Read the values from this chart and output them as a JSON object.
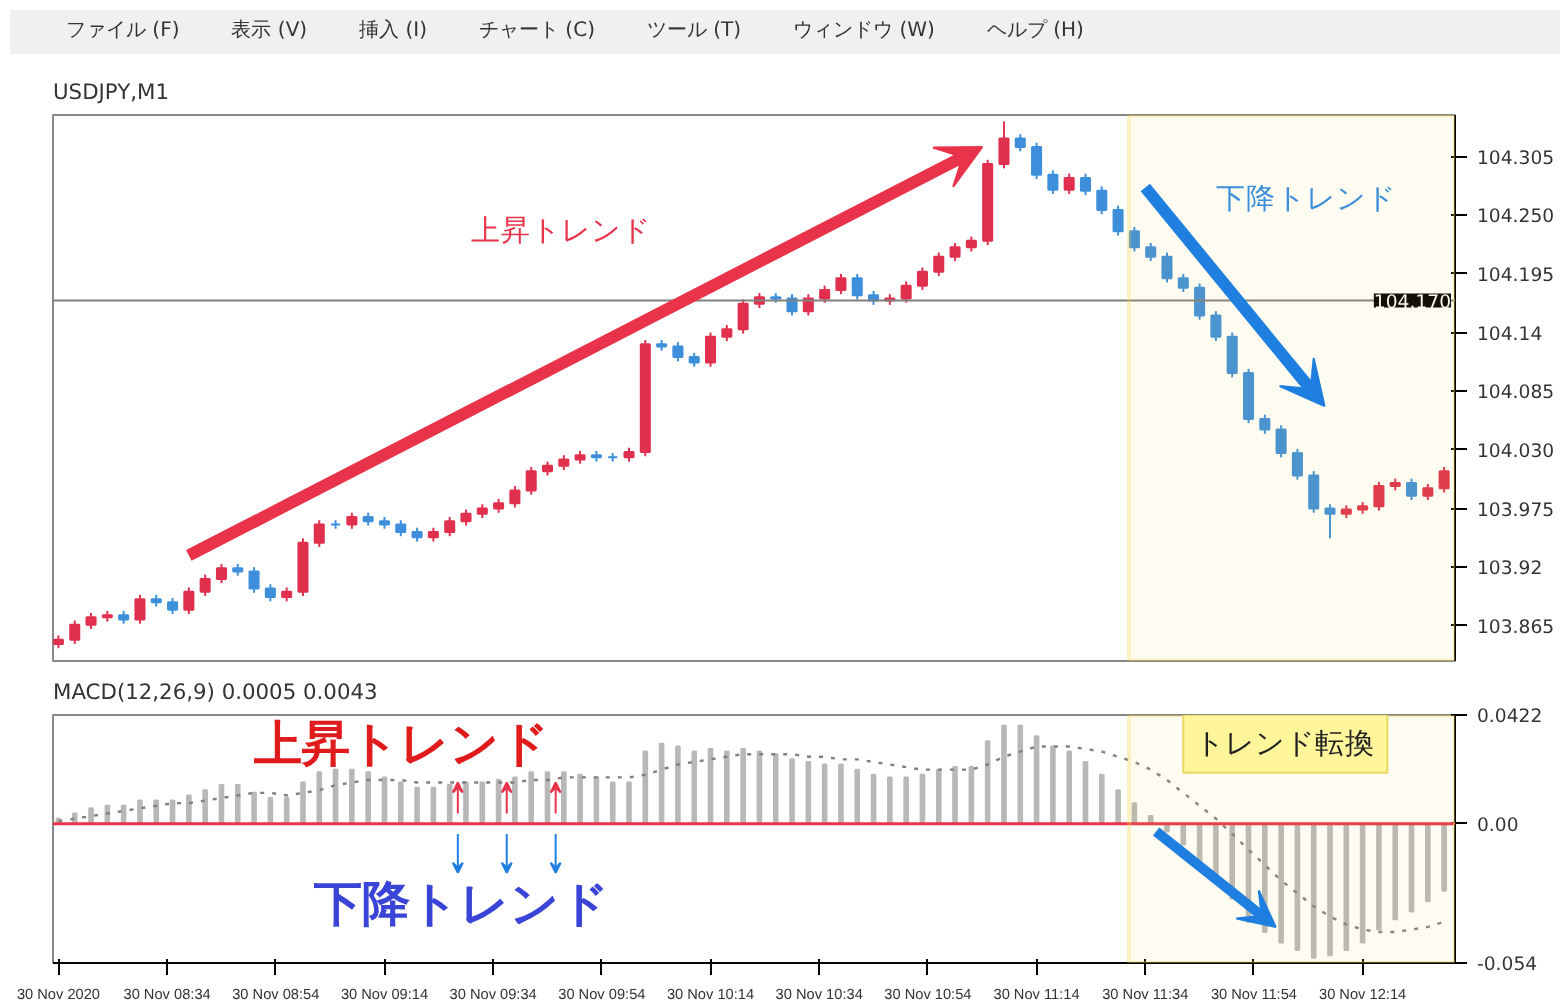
{
  "chart_data": [
    {
      "type": "candlestick",
      "title": "USDJPY,M1",
      "tick_labels": "y",
      "annotations": [
        "ファイル (F)",
        "表示 (V)",
        "挿入 (I)",
        "チャート (C)",
        "ツール (T)",
        "ウィンドウ (W)",
        "ヘルプ (H)",
        "上昇トレンド",
        "下降トレンド"
      ],
      "x": [
        "2020-11-30T08:14",
        "2020-11-30T08:17",
        "2020-11-30T08:20",
        "2020-11-30T08:23",
        "2020-11-30T08:26",
        "2020-11-30T08:29",
        "2020-11-30T08:32",
        "2020-11-30T08:35",
        "2020-11-30T08:38",
        "2020-11-30T08:41",
        "2020-11-30T08:44",
        "2020-11-30T08:47",
        "2020-11-30T08:50",
        "2020-11-30T08:53",
        "2020-11-30T08:56",
        "2020-11-30T08:59",
        "2020-11-30T09:02",
        "2020-11-30T09:05",
        "2020-11-30T09:08",
        "2020-11-30T09:11",
        "2020-11-30T09:14",
        "2020-11-30T09:17",
        "2020-11-30T09:20",
        "2020-11-30T09:23",
        "2020-11-30T09:26",
        "2020-11-30T09:29",
        "2020-11-30T09:32",
        "2020-11-30T09:35",
        "2020-11-30T09:38",
        "2020-11-30T09:41",
        "2020-11-30T09:44",
        "2020-11-30T09:47",
        "2020-11-30T09:50",
        "2020-11-30T09:53",
        "2020-11-30T09:56",
        "2020-11-30T09:59",
        "2020-11-30T10:02",
        "2020-11-30T10:05",
        "2020-11-30T10:08",
        "2020-11-30T10:11",
        "2020-11-30T10:14",
        "2020-11-30T10:17",
        "2020-11-30T10:20",
        "2020-11-30T10:23",
        "2020-11-30T10:26",
        "2020-11-30T10:29",
        "2020-11-30T10:32",
        "2020-11-30T10:35",
        "2020-11-30T10:38",
        "2020-11-30T10:41",
        "2020-11-30T10:44",
        "2020-11-30T10:47",
        "2020-11-30T10:50",
        "2020-11-30T10:53",
        "2020-11-30T10:56",
        "2020-11-30T10:59",
        "2020-11-30T11:02",
        "2020-11-30T11:05",
        "2020-11-30T11:08",
        "2020-11-30T11:11",
        "2020-11-30T11:14",
        "2020-11-30T11:17",
        "2020-11-30T11:20",
        "2020-11-30T11:23",
        "2020-11-30T11:26",
        "2020-11-30T11:29",
        "2020-11-30T11:32",
        "2020-11-30T11:35",
        "2020-11-30T11:38",
        "2020-11-30T11:41",
        "2020-11-30T11:44",
        "2020-11-30T11:47",
        "2020-11-30T11:50",
        "2020-11-30T11:53",
        "2020-11-30T11:56",
        "2020-11-30T11:59",
        "2020-11-30T12:02",
        "2020-11-30T12:05",
        "2020-11-30T12:08",
        "2020-11-30T12:11",
        "2020-11-30T12:14",
        "2020-11-30T12:17",
        "2020-11-30T12:20",
        "2020-11-30T12:23",
        "2020-11-30T12:26",
        "2020-11-30T12:29"
      ],
      "ohlc": [
        [
          103.848,
          103.856,
          103.844,
          103.852
        ],
        [
          103.852,
          103.87,
          103.848,
          103.866
        ],
        [
          103.866,
          103.877,
          103.862,
          103.873
        ],
        [
          103.873,
          103.879,
          103.869,
          103.875
        ],
        [
          103.875,
          103.879,
          103.867,
          103.871
        ],
        [
          103.871,
          103.894,
          103.867,
          103.89
        ],
        [
          103.89,
          103.894,
          103.883,
          103.887
        ],
        [
          103.887,
          103.891,
          103.876,
          103.88
        ],
        [
          103.88,
          103.901,
          103.876,
          103.897
        ],
        [
          103.897,
          103.913,
          103.893,
          103.909
        ],
        [
          103.909,
          103.923,
          103.905,
          103.919
        ],
        [
          103.919,
          103.923,
          103.912,
          103.916
        ],
        [
          103.916,
          103.92,
          103.896,
          103.9
        ],
        [
          103.9,
          103.904,
          103.888,
          103.892
        ],
        [
          103.892,
          103.901,
          103.888,
          103.897
        ],
        [
          103.897,
          103.947,
          103.893,
          103.943
        ],
        [
          103.943,
          103.964,
          103.939,
          103.96
        ],
        [
          103.96,
          103.964,
          103.956,
          103.96
        ],
        [
          103.96,
          103.971,
          103.956,
          103.967
        ],
        [
          103.967,
          103.971,
          103.959,
          103.963
        ],
        [
          103.963,
          103.967,
          103.956,
          103.96
        ],
        [
          103.96,
          103.964,
          103.949,
          103.953
        ],
        [
          103.953,
          103.957,
          103.944,
          103.948
        ],
        [
          103.948,
          103.957,
          103.944,
          103.953
        ],
        [
          103.953,
          103.967,
          103.949,
          103.963
        ],
        [
          103.963,
          103.974,
          103.959,
          103.97
        ],
        [
          103.97,
          103.979,
          103.966,
          103.975
        ],
        [
          103.975,
          103.984,
          103.971,
          103.98
        ],
        [
          103.98,
          103.996,
          103.976,
          103.992
        ],
        [
          103.992,
          104.014,
          103.988,
          104.01
        ],
        [
          104.01,
          104.019,
          104.006,
          104.015
        ],
        [
          104.015,
          104.025,
          104.011,
          104.021
        ],
        [
          104.021,
          104.029,
          104.017,
          104.025
        ],
        [
          104.025,
          104.029,
          104.019,
          104.023
        ],
        [
          104.023,
          104.027,
          104.019,
          104.023
        ],
        [
          104.023,
          104.032,
          104.019,
          104.028
        ],
        [
          104.028,
          104.133,
          104.024,
          104.129
        ],
        [
          104.129,
          104.133,
          104.123,
          104.127
        ],
        [
          104.127,
          104.131,
          104.113,
          104.117
        ],
        [
          104.117,
          104.121,
          104.108,
          104.112
        ],
        [
          104.112,
          104.14,
          104.108,
          104.136
        ],
        [
          104.136,
          104.147,
          104.132,
          104.143
        ],
        [
          104.143,
          104.171,
          104.139,
          104.167
        ],
        [
          104.167,
          104.177,
          104.163,
          104.173
        ],
        [
          104.173,
          104.177,
          104.168,
          104.172
        ],
        [
          104.172,
          104.176,
          104.156,
          104.16
        ],
        [
          104.16,
          104.176,
          104.156,
          104.172
        ],
        [
          104.172,
          104.184,
          104.168,
          104.18
        ],
        [
          104.18,
          104.195,
          104.176,
          104.191
        ],
        [
          104.191,
          104.195,
          104.171,
          104.175
        ],
        [
          104.175,
          104.179,
          104.166,
          104.17
        ],
        [
          104.17,
          104.176,
          104.166,
          104.172
        ],
        [
          104.172,
          104.188,
          104.168,
          104.184
        ],
        [
          104.184,
          104.201,
          104.18,
          104.197
        ],
        [
          104.197,
          104.215,
          104.193,
          104.211
        ],
        [
          104.211,
          104.224,
          104.207,
          104.22
        ],
        [
          104.22,
          104.23,
          104.216,
          104.226
        ],
        [
          104.226,
          104.302,
          104.222,
          104.298
        ],
        [
          104.298,
          104.338,
          104.294,
          104.322
        ],
        [
          104.322,
          104.326,
          104.31,
          104.314
        ],
        [
          104.314,
          104.318,
          104.284,
          104.288
        ],
        [
          104.288,
          104.292,
          104.27,
          104.274
        ],
        [
          104.274,
          104.289,
          104.27,
          104.285
        ],
        [
          104.285,
          104.289,
          104.269,
          104.273
        ],
        [
          104.273,
          104.277,
          104.251,
          104.255
        ],
        [
          104.255,
          104.259,
          104.231,
          104.235
        ],
        [
          104.235,
          104.239,
          104.216,
          104.22
        ],
        [
          104.22,
          104.224,
          104.207,
          104.211
        ],
        [
          104.211,
          104.215,
          104.187,
          104.191
        ],
        [
          104.191,
          104.195,
          104.178,
          104.182
        ],
        [
          104.182,
          104.186,
          104.152,
          104.156
        ],
        [
          104.156,
          104.16,
          104.132,
          104.136
        ],
        [
          104.136,
          104.14,
          104.098,
          104.102
        ],
        [
          104.102,
          104.106,
          104.055,
          104.059
        ],
        [
          104.059,
          104.063,
          104.045,
          104.049
        ],
        [
          104.049,
          104.053,
          104.023,
          104.027
        ],
        [
          104.027,
          104.031,
          104.002,
          104.006
        ],
        [
          104.006,
          104.01,
          103.971,
          103.975
        ],
        [
          103.975,
          103.979,
          103.947,
          103.97
        ],
        [
          103.97,
          103.978,
          103.966,
          103.974
        ],
        [
          103.974,
          103.981,
          103.97,
          103.977
        ],
        [
          103.977,
          104.0,
          103.973,
          103.996
        ],
        [
          103.996,
          104.003,
          103.992,
          103.999
        ],
        [
          103.999,
          104.003,
          103.983,
          103.987
        ],
        [
          103.987,
          103.998,
          103.983,
          103.994
        ],
        [
          103.994,
          104.014,
          103.99,
          104.01
        ]
      ],
      "colors": [
        "#e0304e",
        "#e0304e",
        "#e0304e",
        "#e0304e",
        "#3d8fdb",
        "#e0304e",
        "#3d8fdb",
        "#3d8fdb",
        "#e0304e",
        "#e0304e",
        "#e0304e",
        "#3d8fdb",
        "#3d8fdb",
        "#3d8fdb",
        "#e0304e",
        "#e0304e",
        "#e0304e",
        "#3d8fdb",
        "#e0304e",
        "#3d8fdb",
        "#3d8fdb",
        "#3d8fdb",
        "#3d8fdb",
        "#e0304e",
        "#e0304e",
        "#e0304e",
        "#e0304e",
        "#e0304e",
        "#e0304e",
        "#e0304e",
        "#e0304e",
        "#e0304e",
        "#e0304e",
        "#3d8fdb",
        "#3d8fdb",
        "#e0304e",
        "#e0304e",
        "#3d8fdb",
        "#3d8fdb",
        "#3d8fdb",
        "#e0304e",
        "#e0304e",
        "#e0304e",
        "#e0304e",
        "#3d8fdb",
        "#3d8fdb",
        "#e0304e",
        "#e0304e",
        "#e0304e",
        "#3d8fdb",
        "#3d8fdb",
        "#e0304e",
        "#e0304e",
        "#e0304e",
        "#e0304e",
        "#e0304e",
        "#e0304e",
        "#e0304e",
        "#e0304e",
        "#3d8fdb",
        "#3d8fdb",
        "#3d8fdb",
        "#e0304e",
        "#3d8fdb",
        "#3d8fdb",
        "#3d8fdb",
        "#3d8fdb",
        "#3d8fdb",
        "#3d8fdb",
        "#3d8fdb",
        "#3d8fdb",
        "#3d8fdb",
        "#3d8fdb",
        "#3d8fdb",
        "#3d8fdb",
        "#3d8fdb",
        "#3d8fdb",
        "#3d8fdb",
        "#3d8fdb",
        "#e0304e",
        "#e0304e",
        "#e0304e",
        "#e0304e",
        "#3d8fdb",
        "#e0304e",
        "#e0304e"
      ],
      "xlim": [
        "2020-11-30T08:13",
        "2020-11-30T12:31"
      ],
      "ylim": [
        103.832,
        104.344
      ],
      "yticks": [
        103.865,
        103.92,
        {
          "value": 103.975,
          "label": "103.975"
        },
        {
          "value": 104.03,
          "label": "104.030"
        },
        104.085,
        104.14,
        104.195,
        {
          "value": 104.25,
          "label": "104.250"
        },
        104.305
      ],
      "ref_lines": [
        {
          "axis": "y",
          "value": 104.17,
          "label": "104.170",
          "color": "#808080"
        }
      ],
      "bands": [
        {
          "axis": "x",
          "from": "2020-11-30T11:31",
          "to": "2020-11-30T12:31",
          "color": "#f5d442"
        }
      ]
    },
    {
      "type": "bar",
      "title": "MACD(12,26,9) 0.0005 0.0043",
      "annotations": [
        "上昇トレンド",
        "下降トレンド",
        "トレンド転換"
      ],
      "x": [
        "2020-11-30T08:14",
        "2020-11-30T08:17",
        "2020-11-30T08:20",
        "2020-11-30T08:23",
        "2020-11-30T08:26",
        "2020-11-30T08:29",
        "2020-11-30T08:32",
        "2020-11-30T08:35",
        "2020-11-30T08:38",
        "2020-11-30T08:41",
        "2020-11-30T08:44",
        "2020-11-30T08:47",
        "2020-11-30T08:50",
        "2020-11-30T08:53",
        "2020-11-30T08:56",
        "2020-11-30T08:59",
        "2020-11-30T09:02",
        "2020-11-30T09:05",
        "2020-11-30T09:08",
        "2020-11-30T09:11",
        "2020-11-30T09:14",
        "2020-11-30T09:17",
        "2020-11-30T09:20",
        "2020-11-30T09:23",
        "2020-11-30T09:26",
        "2020-11-30T09:29",
        "2020-11-30T09:32",
        "2020-11-30T09:35",
        "2020-11-30T09:38",
        "2020-11-30T09:41",
        "2020-11-30T09:44",
        "2020-11-30T09:47",
        "2020-11-30T09:50",
        "2020-11-30T09:53",
        "2020-11-30T09:56",
        "2020-11-30T09:59",
        "2020-11-30T10:02",
        "2020-11-30T10:05",
        "2020-11-30T10:08",
        "2020-11-30T10:11",
        "2020-11-30T10:14",
        "2020-11-30T10:17",
        "2020-11-30T10:20",
        "2020-11-30T10:23",
        "2020-11-30T10:26",
        "2020-11-30T10:29",
        "2020-11-30T10:32",
        "2020-11-30T10:35",
        "2020-11-30T10:38",
        "2020-11-30T10:41",
        "2020-11-30T10:44",
        "2020-11-30T10:47",
        "2020-11-30T10:50",
        "2020-11-30T10:53",
        "2020-11-30T10:56",
        "2020-11-30T10:59",
        "2020-11-30T11:02",
        "2020-11-30T11:05",
        "2020-11-30T11:08",
        "2020-11-30T11:11",
        "2020-11-30T11:14",
        "2020-11-30T11:17",
        "2020-11-30T11:20",
        "2020-11-30T11:23",
        "2020-11-30T11:26",
        "2020-11-30T11:29",
        "2020-11-30T11:32",
        "2020-11-30T11:35",
        "2020-11-30T11:38",
        "2020-11-30T11:41",
        "2020-11-30T11:44",
        "2020-11-30T11:47",
        "2020-11-30T11:50",
        "2020-11-30T11:53",
        "2020-11-30T11:56",
        "2020-11-30T11:59",
        "2020-11-30T12:02",
        "2020-11-30T12:05",
        "2020-11-30T12:08",
        "2020-11-30T12:11",
        "2020-11-30T12:14",
        "2020-11-30T12:17",
        "2020-11-30T12:20",
        "2020-11-30T12:23",
        "2020-11-30T12:26",
        "2020-11-30T12:29"
      ],
      "series": [
        {
          "type": "bar",
          "color": "#b8b8b8",
          "values": [
            0.002,
            0.004,
            0.006,
            0.007,
            0.007,
            0.009,
            0.009,
            0.009,
            0.011,
            0.013,
            0.015,
            0.015,
            0.012,
            0.01,
            0.01,
            0.016,
            0.02,
            0.021,
            0.021,
            0.02,
            0.018,
            0.016,
            0.014,
            0.014,
            0.015,
            0.016,
            0.016,
            0.017,
            0.018,
            0.02,
            0.02,
            0.02,
            0.019,
            0.018,
            0.016,
            0.016,
            0.028,
            0.031,
            0.03,
            0.028,
            0.029,
            0.028,
            0.029,
            0.028,
            0.027,
            0.025,
            0.024,
            0.023,
            0.023,
            0.021,
            0.019,
            0.018,
            0.018,
            0.019,
            0.021,
            0.022,
            0.022,
            0.032,
            0.038,
            0.038,
            0.034,
            0.03,
            0.028,
            0.024,
            0.019,
            0.013,
            0.008,
            0.003,
            -0.003,
            -0.008,
            -0.015,
            -0.021,
            -0.029,
            -0.038,
            -0.042,
            -0.046,
            -0.049,
            -0.052,
            -0.051,
            -0.049,
            -0.046,
            -0.041,
            -0.037,
            -0.034,
            -0.03,
            -0.026
          ]
        },
        {
          "type": "line",
          "color": "#808080",
          "line_style": "dotted",
          "values": [
            0.001,
            0.002,
            0.003,
            0.004,
            0.005,
            0.006,
            0.007,
            0.008,
            0.008,
            0.009,
            0.01,
            0.011,
            0.012,
            0.012,
            0.011,
            0.012,
            0.013,
            0.015,
            0.016,
            0.017,
            0.017,
            0.017,
            0.016,
            0.016,
            0.016,
            0.016,
            0.016,
            0.016,
            0.016,
            0.017,
            0.017,
            0.018,
            0.018,
            0.018,
            0.018,
            0.018,
            0.019,
            0.021,
            0.023,
            0.024,
            0.025,
            0.026,
            0.027,
            0.027,
            0.027,
            0.027,
            0.026,
            0.026,
            0.025,
            0.025,
            0.024,
            0.023,
            0.022,
            0.021,
            0.021,
            0.021,
            0.021,
            0.023,
            0.026,
            0.028,
            0.03,
            0.03,
            0.03,
            0.029,
            0.028,
            0.026,
            0.024,
            0.021,
            0.017,
            0.012,
            0.007,
            0.002,
            -0.004,
            -0.01,
            -0.016,
            -0.022,
            -0.027,
            -0.032,
            -0.036,
            -0.039,
            -0.041,
            -0.042,
            -0.042,
            -0.041,
            -0.04,
            -0.038
          ]
        }
      ],
      "xlim": [
        "2020-11-30T08:13",
        "2020-11-30T12:31"
      ],
      "xticks": [
        {
          "value": "2020-11-30T08:14",
          "label": "30 Nov 2020"
        },
        {
          "value": "2020-11-30T08:34",
          "label": "30 Nov 08:34"
        },
        {
          "value": "2020-11-30T08:54",
          "label": "30 Nov 08:54"
        },
        {
          "value": "2020-11-30T09:14",
          "label": "30 Nov 09:14"
        },
        {
          "value": "2020-11-30T09:34",
          "label": "30 Nov 09:34"
        },
        {
          "value": "2020-11-30T09:54",
          "label": "30 Nov 09:54"
        },
        {
          "value": "2020-11-30T10:14",
          "label": "30 Nov 10:14"
        },
        {
          "value": "2020-11-30T10:34",
          "label": "30 Nov 10:34"
        },
        {
          "value": "2020-11-30T10:54",
          "label": "30 Nov 10:54"
        },
        {
          "value": "2020-11-30T11:14",
          "label": "30 Nov 11:14"
        },
        {
          "value": "2020-11-30T11:34",
          "label": "30 Nov 11:34"
        },
        {
          "value": "2020-11-30T11:54",
          "label": "30 Nov 11:54"
        },
        {
          "value": "2020-11-30T12:14",
          "label": "30 Nov 12:14"
        }
      ],
      "ylim": [
        -0.054,
        0.0422
      ],
      "yticks": [
        {
          "value": -0.054,
          "label": "-0.054"
        },
        {
          "value": 0,
          "label": "0.00"
        },
        {
          "value": 0.0422,
          "label": "0.0422"
        }
      ],
      "ref_lines": [
        {
          "axis": "y",
          "value": 0,
          "color": "#e8334a"
        }
      ],
      "bands": [
        {
          "axis": "x",
          "from": "2020-11-30T11:31",
          "to": "2020-11-30T12:31",
          "color": "#f5d442"
        }
      ]
    }
  ]
}
